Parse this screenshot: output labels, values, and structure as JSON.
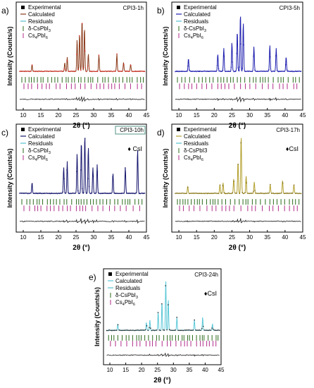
{
  "panels": [
    {
      "letter": "a)",
      "tag": "CPI3-1h",
      "tag_boxed": false,
      "marker": "",
      "legend_sub": true,
      "legend_labels": [
        "Experimental",
        "Calculated",
        "Residuals",
        "δ-CsPbI",
        "Cs",
        "PbI"
      ],
      "calc_color": "#8B3A1A",
      "exp_color": "#e0302a"
    },
    {
      "letter": "b)",
      "tag": "CPI3-5h",
      "tag_boxed": false,
      "marker": "",
      "legend_sub": true,
      "legend_labels": [
        "Experimental",
        "Calculated",
        "Residuals",
        "δ-CsPbI",
        "Cs",
        "PbI"
      ],
      "calc_color": "#1f1fb0",
      "exp_color": "#1f1fb0"
    },
    {
      "letter": "c)",
      "tag": "CPI3-10h",
      "tag_boxed": true,
      "marker": "♦ CsI",
      "legend_sub": true,
      "legend_labels": [
        "Experimental",
        "Calculated",
        "Residuals",
        "δ-CsPbI",
        "Cs",
        "PbI"
      ],
      "calc_color": "#15156e",
      "exp_color": "#15156e"
    },
    {
      "letter": "d)",
      "tag": "CPI3-17h",
      "tag_boxed": false,
      "marker": "♦CsI",
      "legend_sub": false,
      "legend_labels": [
        "Experimental",
        "Calculated",
        "Residuals",
        "δ-CsPbI3",
        "Cs",
        "PbI"
      ],
      "calc_color": "#b3a02e",
      "exp_color": "#7a6a18"
    },
    {
      "letter": "e)",
      "tag": "CPI3-24h",
      "tag_boxed": false,
      "marker": "♦CsI",
      "legend_sub": true,
      "legend_labels": [
        "Experimental",
        "Calculated",
        "Residuals",
        "δ-CsPbI",
        "Cs",
        "PbI"
      ],
      "calc_color": "#5cc8d8",
      "exp_color": "#222222"
    }
  ],
  "sub": {
    "three": "3",
    "four": "4",
    "six": "6"
  },
  "axis": {
    "xlabel": "2θ (°)",
    "ylabel": "Intensity (Counts/s)"
  },
  "colors": {
    "delta": "#2a6a1a",
    "cs4": "#b02a8a",
    "resid": "#222222",
    "ref_diamond": "#111111"
  },
  "chart_data": [
    {
      "type": "line",
      "panel": "a",
      "xlim": [
        8,
        45
      ],
      "x_ticks": [
        10,
        15,
        20,
        25,
        30,
        35,
        40,
        45
      ],
      "peaks_2theta": [
        12.5,
        21.8,
        22.5,
        25.3,
        26.0,
        26.7,
        27.4,
        28.5,
        31.5,
        36.6,
        38.5,
        40.5
      ],
      "peak_rel_intensity": [
        0.12,
        0.15,
        0.25,
        0.55,
        0.65,
        0.9,
        0.75,
        0.3,
        0.28,
        0.3,
        0.15,
        0.12
      ]
    },
    {
      "type": "line",
      "panel": "b",
      "xlim": [
        8,
        45
      ],
      "x_ticks": [
        10,
        15,
        20,
        25,
        30,
        35,
        40,
        45
      ],
      "peaks_2theta": [
        12.7,
        21.0,
        22.7,
        25.0,
        26.5,
        27.4,
        28.2,
        31.2,
        35.7,
        37.5,
        40.3
      ],
      "peak_rel_intensity": [
        0.22,
        0.3,
        0.4,
        0.5,
        0.7,
        1.0,
        0.85,
        0.42,
        0.45,
        0.4,
        0.25
      ]
    },
    {
      "type": "line",
      "panel": "c",
      "xlim": [
        8,
        45
      ],
      "x_ticks": [
        10,
        15,
        20,
        25,
        30,
        35,
        40,
        45
      ],
      "peaks_2theta": [
        12.5,
        21.5,
        22.5,
        25.3,
        26.5,
        27.5,
        28.5,
        29.8,
        31.0,
        35.5,
        39.0,
        42.5
      ],
      "peak_rel_intensity": [
        0.18,
        0.45,
        0.55,
        0.7,
        0.9,
        1.0,
        0.8,
        0.45,
        0.5,
        0.35,
        0.45,
        0.75
      ]
    },
    {
      "type": "line",
      "panel": "d",
      "xlim": [
        8,
        45
      ],
      "x_ticks": [
        10,
        15,
        20,
        25,
        30,
        35,
        40,
        45
      ],
      "peaks_2theta": [
        12.5,
        21.6,
        22.5,
        25.5,
        26.7,
        27.6,
        29.0,
        31.3,
        35.8,
        39.3,
        42.5
      ],
      "peak_rel_intensity": [
        0.12,
        0.15,
        0.18,
        0.25,
        0.55,
        1.0,
        0.3,
        0.2,
        0.15,
        0.22,
        0.15
      ]
    },
    {
      "type": "line",
      "panel": "e",
      "xlim": [
        8,
        45
      ],
      "x_ticks": [
        10,
        15,
        20,
        25,
        30,
        35,
        40,
        45
      ],
      "peaks_2theta": [
        12.5,
        21.5,
        22.6,
        25.2,
        26.4,
        27.6,
        28.4,
        31.1,
        36.6,
        39.2,
        42.3
      ],
      "peak_rel_intensity": [
        0.12,
        0.15,
        0.2,
        0.35,
        0.55,
        1.0,
        0.6,
        0.25,
        0.2,
        0.25,
        0.12
      ]
    }
  ]
}
